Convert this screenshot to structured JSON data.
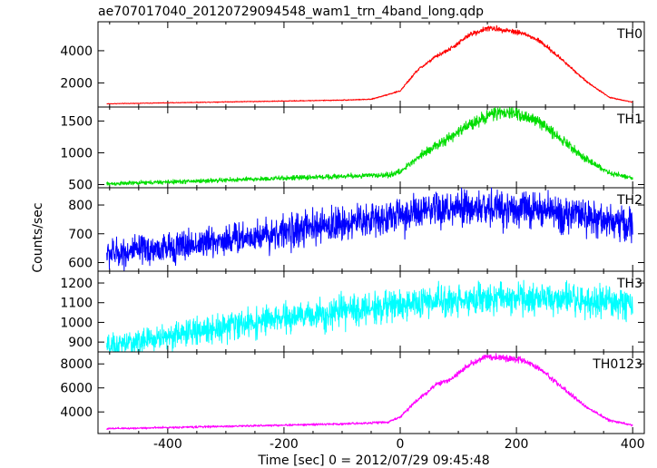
{
  "title": "ae707017040_20120729094548_wam1_trn_4band_long.qdp",
  "xlabel": "Time [sec] 0 = 2012/07/29 09:45:48",
  "ylabel": "Counts/sec",
  "chart_data": {
    "type": "line",
    "title": "ae707017040_20120729094548_wam1_trn_4band_long.qdp",
    "xlabel": "Time [sec] 0 = 2012/07/29 09:45:48",
    "ylabel": "Counts/sec",
    "xlim": [
      -520,
      420
    ],
    "xticks": [
      -400,
      -200,
      0,
      200,
      400
    ],
    "panels": [
      {
        "name": "TH0",
        "color": "#ff0000",
        "ylim": [
          500,
          5800
        ],
        "yticks": [
          2000,
          4000
        ],
        "x": [
          -505,
          -400,
          -300,
          -200,
          -100,
          -50,
          0,
          30,
          60,
          90,
          120,
          150,
          180,
          210,
          240,
          280,
          320,
          360,
          400
        ],
        "values": [
          700,
          760,
          820,
          870,
          930,
          980,
          1500,
          2800,
          3600,
          4200,
          5000,
          5400,
          5300,
          5100,
          4600,
          3400,
          2100,
          1100,
          800
        ],
        "noise": 0.015
      },
      {
        "name": "TH1",
        "color": "#00dd00",
        "ylim": [
          450,
          1720
        ],
        "yticks": [
          500,
          1000,
          1500
        ],
        "x": [
          -505,
          -400,
          -300,
          -200,
          -100,
          -20,
          0,
          40,
          80,
          120,
          160,
          200,
          240,
          280,
          320,
          360,
          400
        ],
        "values": [
          510,
          540,
          570,
          600,
          630,
          650,
          700,
          1000,
          1200,
          1450,
          1620,
          1620,
          1480,
          1200,
          900,
          680,
          600
        ],
        "noise": 0.03
      },
      {
        "name": "TH2",
        "color": "#0000ff",
        "ylim": [
          570,
          860
        ],
        "yticks": [
          600,
          700,
          800
        ],
        "x": [
          -505,
          -400,
          -300,
          -200,
          -100,
          0,
          100,
          200,
          300,
          400
        ],
        "values": [
          630,
          650,
          680,
          705,
          735,
          765,
          785,
          790,
          765,
          730
        ],
        "noise": 0.04
      },
      {
        "name": "TH3",
        "color": "#00ffff",
        "ylim": [
          850,
          1260
        ],
        "yticks": [
          900,
          1000,
          1100,
          1200
        ],
        "x": [
          -505,
          -400,
          -300,
          -200,
          -100,
          0,
          100,
          200,
          300,
          400
        ],
        "values": [
          870,
          930,
          980,
          1020,
          1055,
          1090,
          1115,
          1125,
          1110,
          1090
        ],
        "noise": 0.035
      },
      {
        "name": "TH0123",
        "color": "#ff00ff",
        "ylim": [
          2200,
          9000
        ],
        "yticks": [
          4000,
          6000,
          8000
        ],
        "x": [
          -505,
          -400,
          -300,
          -200,
          -100,
          -20,
          0,
          30,
          60,
          90,
          120,
          150,
          180,
          210,
          240,
          280,
          320,
          360,
          400
        ],
        "values": [
          2600,
          2700,
          2800,
          2900,
          3000,
          3150,
          3600,
          5000,
          6200,
          6800,
          8000,
          8600,
          8500,
          8300,
          7600,
          6000,
          4400,
          3300,
          2900
        ],
        "noise": 0.015
      }
    ]
  }
}
